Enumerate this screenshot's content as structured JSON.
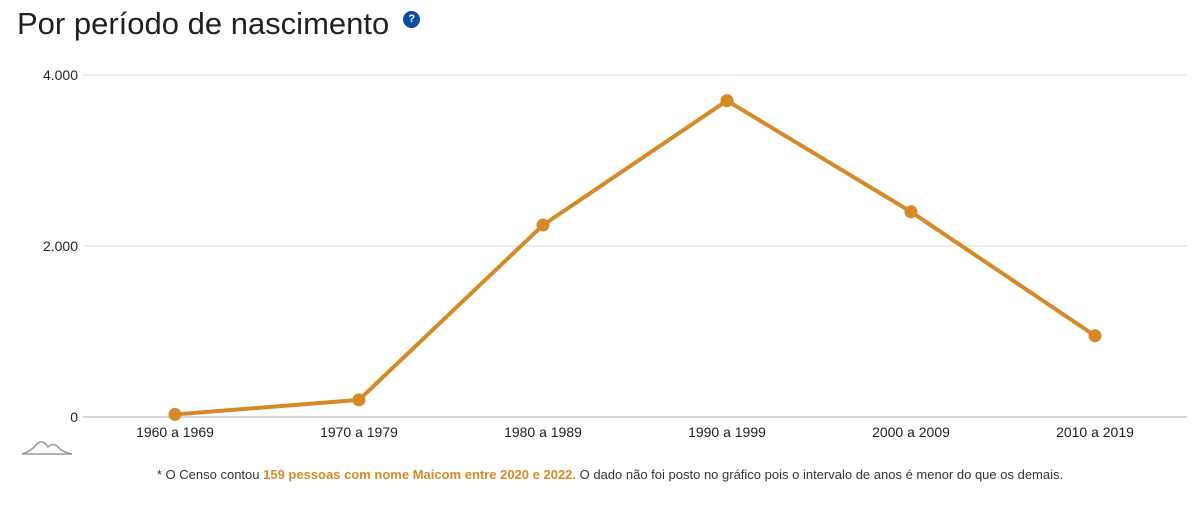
{
  "title": "Por período de nascimento",
  "help_icon": "?",
  "note": {
    "prefix": "* O Censo contou ",
    "highlight": "159 pessoas com nome Maicom entre 2020 e 2022.",
    "suffix": " O dado não foi posto no gráfico pois o intervalo de anos é menor do que os demais."
  },
  "chart_data": {
    "type": "line",
    "title": "Por período de nascimento",
    "xlabel": "",
    "ylabel": "",
    "categories": [
      "1960 a 1969",
      "1970 a 1979",
      "1980 a 1989",
      "1990 a 1999",
      "2000 a 2009",
      "2010 a 2019"
    ],
    "values": [
      30,
      200,
      2245,
      3700,
      2400,
      950
    ],
    "ylim": [
      0,
      4000
    ],
    "yticks": [
      0,
      2000,
      4000
    ],
    "ytick_labels": [
      "0",
      "2.000",
      "4.000"
    ],
    "grid": true,
    "color": "#d58a27"
  }
}
